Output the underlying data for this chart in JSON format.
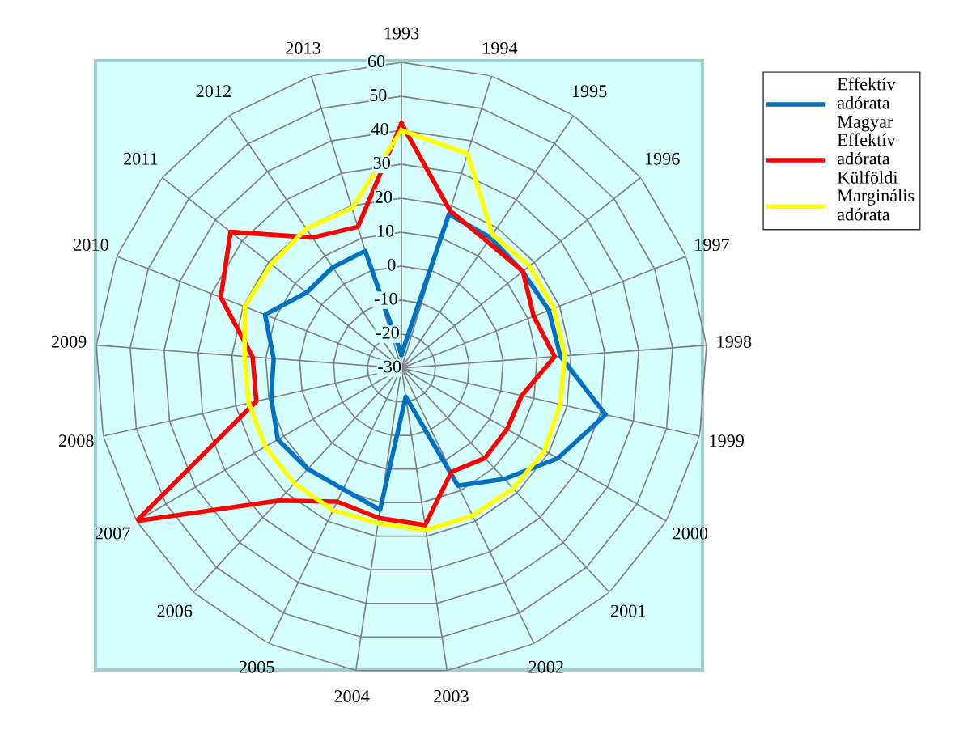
{
  "chart_data": {
    "type": "radar",
    "categories": [
      "1993",
      "1994",
      "1995",
      "1996",
      "1997",
      "1998",
      "1999",
      "2000",
      "2001",
      "2002",
      "2003",
      "2004",
      "2005",
      "2006",
      "2007",
      "2008",
      "2009",
      "2010",
      "2011",
      "2012",
      "2013"
    ],
    "series": [
      {
        "name": "Effektív adórata Magyar",
        "color": "#0070c0",
        "values": [
          -26,
          17.4,
          16.5,
          15.6,
          16.6,
          16.9,
          31.6,
          23.1,
          14.5,
          8.4,
          -21.5,
          12.2,
          9.5,
          10.5,
          12,
          9.3,
          7.7,
          13.1,
          5.7,
          5.9,
          6.1
        ]
      },
      {
        "name": "Effektív adórata Külföldi",
        "color": "#ff0000",
        "values": [
          42,
          18.5,
          15,
          15.7,
          11.8,
          15.2,
          6.3,
          5.9,
          6.1,
          3.9,
          16.7,
          14.6,
          13.6,
          23.2,
          60,
          13.8,
          13.9,
          27.1,
          34.3,
          16.5,
          13.5
        ]
      },
      {
        "name": "Marginális adórata",
        "color": "#ffff00",
        "values": [
          40,
          36,
          17.5,
          18.2,
          18.2,
          18.2,
          17.9,
          18.6,
          18.3,
          18.2,
          18.2,
          16.2,
          16.4,
          16.3,
          16.2,
          16.1,
          16.3,
          19.5,
          19,
          19.7,
          19.3
        ]
      }
    ],
    "ylim": [
      -30,
      60
    ],
    "yticks": [
      -30,
      -20,
      -10,
      0,
      10,
      20,
      30,
      40,
      50,
      60
    ],
    "grid": true,
    "legend": "top right"
  }
}
